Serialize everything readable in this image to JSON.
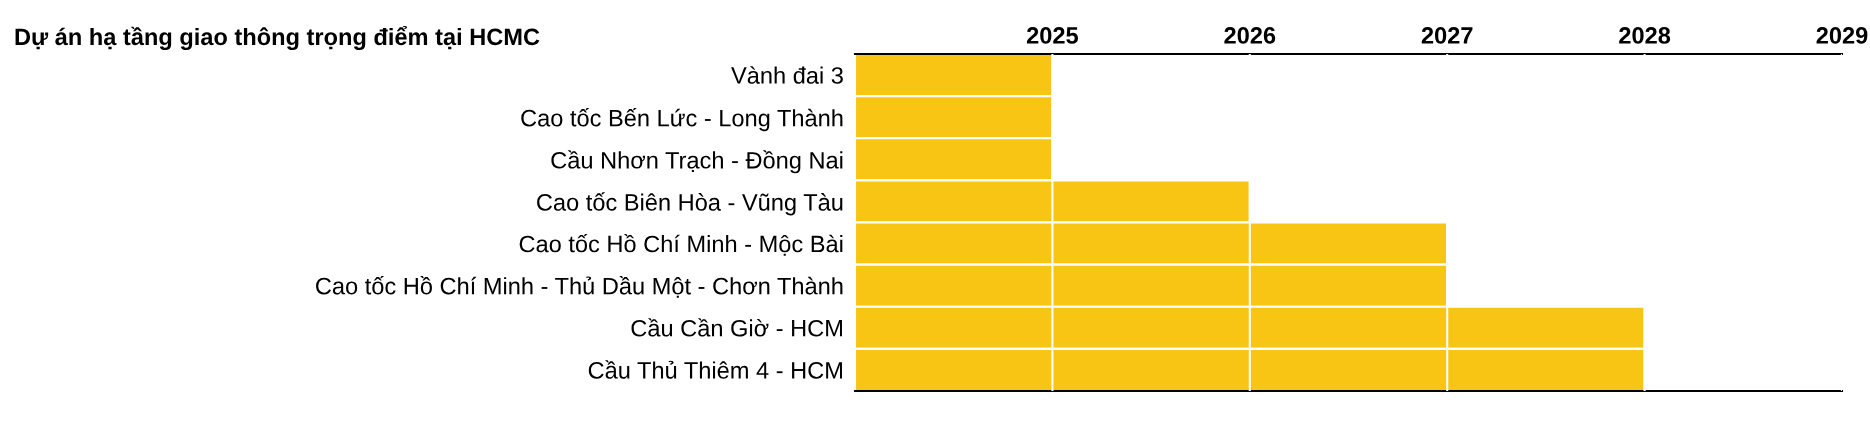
{
  "chart_data": {
    "type": "bar",
    "orientation": "horizontal",
    "title": "Dự án hạ tầng giao thông trọng điểm tại HCMC",
    "categories": [
      "Vành đai 3",
      "Cao tốc Bến Lức - Long Thành",
      "Cầu Nhơn Trạch - Đồng Nai",
      "Cao tốc Biên Hòa - Vũng Tàu",
      "Cao tốc Hồ Chí Minh - Mộc Bài",
      "Cao tốc Hồ Chí Minh - Thủ Dầu Một - Chơn Thành",
      "Cầu Cần Giờ - HCM",
      "Cầu Thủ Thiêm 4 - HCM"
    ],
    "base": [
      2024,
      2024,
      2024,
      2024,
      2024,
      2024,
      2024,
      2024
    ],
    "values": [
      1,
      1,
      1,
      2,
      3,
      3,
      4,
      4
    ],
    "color": "#f8c515",
    "xlim": [
      2024,
      2029
    ],
    "xticks": [
      2025,
      2026,
      2027,
      2028,
      2029
    ],
    "grid": "x"
  }
}
